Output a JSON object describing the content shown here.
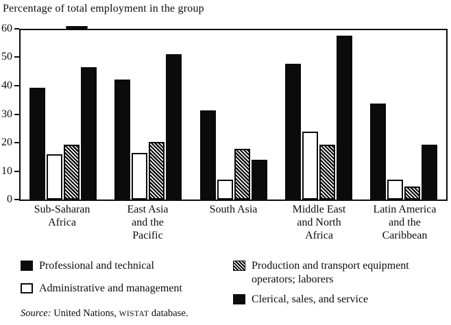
{
  "title": "Percentage of total employment in the group",
  "chart_data": {
    "type": "bar",
    "title": "Percentage of total employment in the group",
    "xlabel": "",
    "ylabel": "Percentage of total employment in the group",
    "ylim": [
      0,
      60
    ],
    "yticks": [
      60,
      50,
      40,
      30,
      20,
      10,
      0
    ],
    "grid": false,
    "legend_position": "bottom",
    "categories": [
      "Sub-Saharan Africa",
      "East Asia and the Pacific",
      "South Asia",
      "Middle East and North Africa",
      "Latin America and the Caribbean"
    ],
    "x_label_lines": [
      [
        "Sub-Saharan",
        "Africa"
      ],
      [
        "East Asia",
        "and the",
        "Pacific"
      ],
      [
        "South Asia"
      ],
      [
        "Middle East",
        "and North",
        "Africa"
      ],
      [
        "Latin America",
        "and the",
        "Caribbean"
      ]
    ],
    "series": [
      {
        "name": "Professional and technical",
        "swatch": "solid-black",
        "values": [
          39.5,
          42.5,
          31.5,
          48,
          34
        ]
      },
      {
        "name": "Administrative and management",
        "swatch": "white-outline",
        "values": [
          16,
          16.5,
          7,
          24,
          7
        ]
      },
      {
        "name": "Production and transport equipment operators; laborers",
        "swatch": "diagonal-hatch",
        "values": [
          19.5,
          20.5,
          18,
          19.5,
          4.5
        ]
      },
      {
        "name": "Clerical, sales, and service",
        "swatch": "solid-black",
        "values": [
          47,
          51.5,
          14,
          58,
          19.5
        ]
      }
    ]
  },
  "colors": {
    "bar_fill": "#0b0b0b",
    "background": "#ffffff",
    "text": "#0b0b0b"
  },
  "source": {
    "label": "Source:",
    "body": " United Nations, ",
    "wistat": "WISTAT",
    "suffix": " database."
  }
}
